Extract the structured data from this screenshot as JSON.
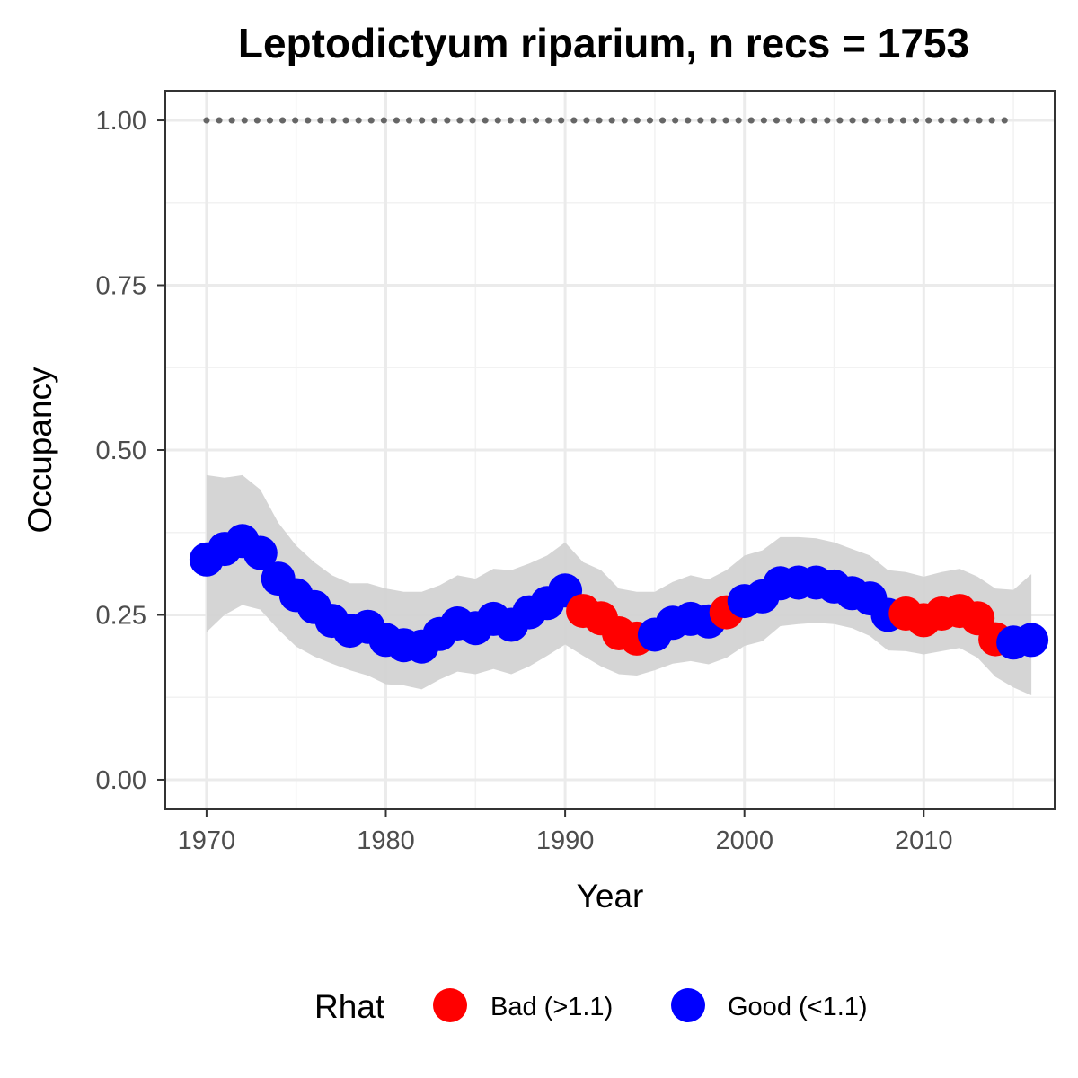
{
  "chart_data": {
    "type": "scatter",
    "title": "Leptodictyum riparium, n recs = 1753",
    "xlabel": "Year",
    "ylabel": "Occupancy",
    "xlim": [
      1967.7,
      2017.3
    ],
    "ylim": [
      -0.045,
      1.045
    ],
    "x_ticks": [
      1970,
      1980,
      1990,
      2000,
      2010
    ],
    "x_tick_labels": [
      "1970",
      "1980",
      "1990",
      "2000",
      "2010"
    ],
    "y_ticks": [
      0,
      0.25,
      0.5,
      0.75,
      1.0
    ],
    "y_tick_labels": [
      "0.00",
      "0.25",
      "0.50",
      "0.75",
      "1.00"
    ],
    "grid": true,
    "legend": {
      "title": "Rhat",
      "position": "bottom",
      "entries": [
        {
          "label": "Bad (>1.1)",
          "color": "#ff0000"
        },
        {
          "label": "Good (<1.1)",
          "color": "#0000ff"
        }
      ]
    },
    "colors": {
      "Bad (>1.1)": "#ff0000",
      "Good (<1.1)": "#0000ff",
      "ribbon": "#d3d3d3",
      "reference": "#666666"
    },
    "reference_line": {
      "y": 1.0,
      "x_start": 1970,
      "x_end": 2015,
      "style": "dotted"
    },
    "series": [
      {
        "x": [
          1970,
          1971,
          1972,
          1973,
          1974,
          1975,
          1976,
          1977,
          1978,
          1979,
          1980,
          1981,
          1982,
          1983,
          1984,
          1985,
          1986,
          1987,
          1988,
          1989,
          1990,
          1991,
          1992,
          1993,
          1994,
          1995,
          1996,
          1997,
          1998,
          1999,
          2000,
          2001,
          2002,
          2003,
          2004,
          2005,
          2006,
          2007,
          2008,
          2009,
          2010,
          2011,
          2012,
          2013,
          2014,
          2015,
          2016
        ],
        "mean": [
          0.334,
          0.35,
          0.362,
          0.344,
          0.305,
          0.28,
          0.262,
          0.241,
          0.226,
          0.232,
          0.212,
          0.204,
          0.202,
          0.221,
          0.237,
          0.23,
          0.244,
          0.235,
          0.254,
          0.268,
          0.287,
          0.256,
          0.245,
          0.222,
          0.214,
          0.22,
          0.238,
          0.244,
          0.24,
          0.254,
          0.271,
          0.278,
          0.298,
          0.299,
          0.299,
          0.293,
          0.283,
          0.275,
          0.25,
          0.252,
          0.242,
          0.252,
          0.256,
          0.245,
          0.213,
          0.208,
          0.212
        ],
        "lower": [
          0.224,
          0.25,
          0.265,
          0.258,
          0.228,
          0.202,
          0.187,
          0.176,
          0.166,
          0.158,
          0.145,
          0.143,
          0.137,
          0.152,
          0.164,
          0.16,
          0.168,
          0.16,
          0.172,
          0.188,
          0.205,
          0.188,
          0.172,
          0.16,
          0.158,
          0.166,
          0.176,
          0.18,
          0.175,
          0.185,
          0.203,
          0.21,
          0.233,
          0.236,
          0.238,
          0.236,
          0.23,
          0.218,
          0.196,
          0.195,
          0.19,
          0.195,
          0.2,
          0.185,
          0.156,
          0.14,
          0.128
        ],
        "upper": [
          0.462,
          0.458,
          0.462,
          0.44,
          0.39,
          0.355,
          0.33,
          0.31,
          0.298,
          0.298,
          0.29,
          0.285,
          0.285,
          0.295,
          0.31,
          0.305,
          0.32,
          0.318,
          0.328,
          0.34,
          0.36,
          0.33,
          0.318,
          0.29,
          0.285,
          0.285,
          0.3,
          0.31,
          0.304,
          0.318,
          0.34,
          0.348,
          0.368,
          0.368,
          0.366,
          0.36,
          0.35,
          0.34,
          0.318,
          0.315,
          0.308,
          0.315,
          0.32,
          0.308,
          0.29,
          0.288,
          0.312
        ],
        "rhat": [
          "Good",
          "Good",
          "Good",
          "Good",
          "Good",
          "Good",
          "Good",
          "Good",
          "Good",
          "Good",
          "Good",
          "Good",
          "Good",
          "Good",
          "Good",
          "Good",
          "Good",
          "Good",
          "Good",
          "Good",
          "Good",
          "Bad",
          "Bad",
          "Bad",
          "Bad",
          "Good",
          "Good",
          "Good",
          "Good",
          "Bad",
          "Good",
          "Good",
          "Good",
          "Good",
          "Good",
          "Good",
          "Good",
          "Good",
          "Good",
          "Bad",
          "Bad",
          "Bad",
          "Bad",
          "Bad",
          "Bad",
          "Good",
          "Good"
        ]
      }
    ]
  }
}
